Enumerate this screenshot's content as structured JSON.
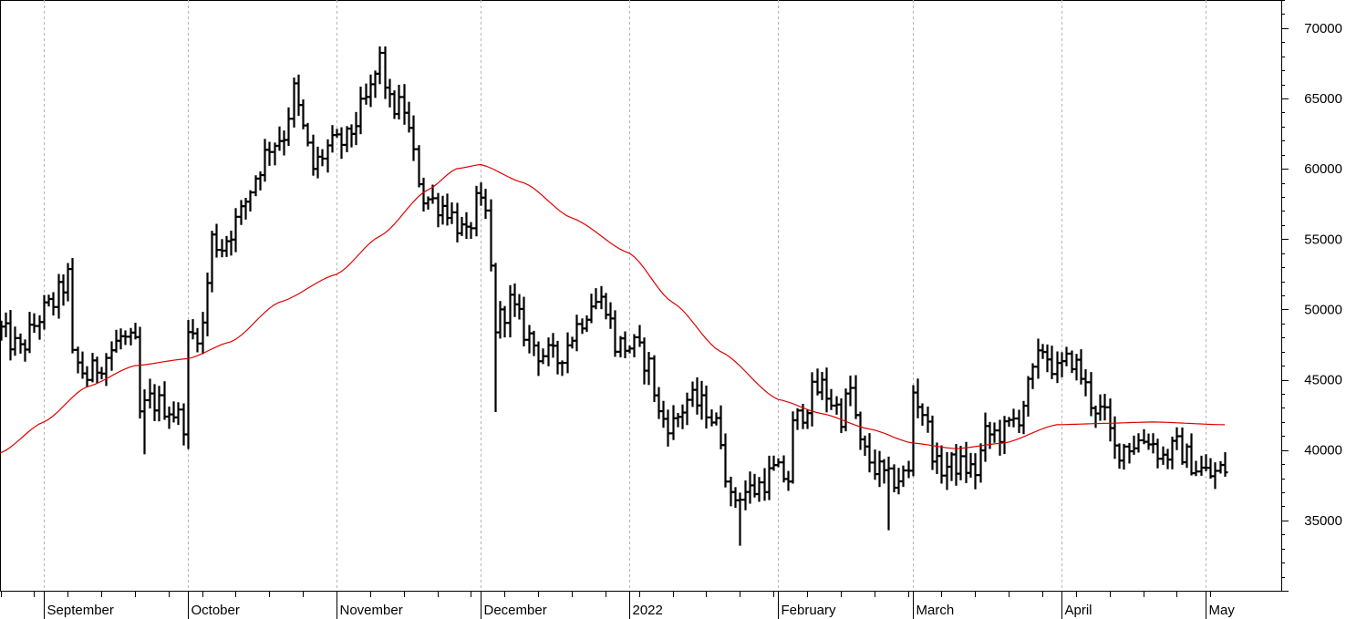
{
  "chart_data": {
    "type": "ohlc",
    "title": "",
    "xlabel": "",
    "ylabel": "",
    "ylim": [
      30000,
      72000
    ],
    "y_ticks": [
      35000,
      40000,
      45000,
      50000,
      55000,
      60000,
      65000,
      70000
    ],
    "y_axis_position": "right",
    "grid": "vertical dashed lines at month starts",
    "x_start": "2021-08-23",
    "x_end": "2022-05-05",
    "month_labels": [
      {
        "date": "2021-09-01",
        "label": "September"
      },
      {
        "date": "2021-10-01",
        "label": "October"
      },
      {
        "date": "2021-11-01",
        "label": "November"
      },
      {
        "date": "2021-12-01",
        "label": "December"
      },
      {
        "date": "2022-01-01",
        "label": "2022"
      },
      {
        "date": "2022-02-01",
        "label": "February"
      },
      {
        "date": "2022-03-01",
        "label": "March"
      },
      {
        "date": "2022-04-01",
        "label": "April"
      },
      {
        "date": "2022-05-01",
        "label": "May"
      }
    ],
    "price_anchors": [
      [
        "2021-08-23",
        48500
      ],
      [
        "2021-08-27",
        47000
      ],
      [
        "2021-08-31",
        49500
      ],
      [
        "2021-09-03",
        50500
      ],
      [
        "2021-09-06",
        52300
      ],
      [
        "2021-09-07",
        46500
      ],
      [
        "2021-09-10",
        45200
      ],
      [
        "2021-09-14",
        46700
      ],
      [
        "2021-09-17",
        48000
      ],
      [
        "2021-09-20",
        47300
      ],
      [
        "2021-09-21",
        42500
      ],
      [
        "2021-09-23",
        43500
      ],
      [
        "2021-09-27",
        43000
      ],
      [
        "2021-09-30",
        42000
      ],
      [
        "2021-10-01",
        47800
      ],
      [
        "2021-10-04",
        48800
      ],
      [
        "2021-10-06",
        55000
      ],
      [
        "2021-10-08",
        54500
      ],
      [
        "2021-10-12",
        56800
      ],
      [
        "2021-10-15",
        59500
      ],
      [
        "2021-10-18",
        61700
      ],
      [
        "2021-10-21",
        62500
      ],
      [
        "2021-10-23",
        65500
      ],
      [
        "2021-10-27",
        60000
      ],
      [
        "2021-10-30",
        61500
      ],
      [
        "2021-11-03",
        62000
      ],
      [
        "2021-11-08",
        65500
      ],
      [
        "2021-11-10",
        67800
      ],
      [
        "2021-11-12",
        64500
      ],
      [
        "2021-11-15",
        64300
      ],
      [
        "2021-11-17",
        60800
      ],
      [
        "2021-11-19",
        58000
      ],
      [
        "2021-11-24",
        57200
      ],
      [
        "2021-11-28",
        55000
      ],
      [
        "2021-11-30",
        57500
      ],
      [
        "2021-12-02",
        56700
      ],
      [
        "2021-12-04",
        48800
      ],
      [
        "2021-12-07",
        50500
      ],
      [
        "2021-12-10",
        48500
      ],
      [
        "2021-12-13",
        47000
      ],
      [
        "2021-12-17",
        46400
      ],
      [
        "2021-12-21",
        48800
      ],
      [
        "2021-12-24",
        50600
      ],
      [
        "2021-12-27",
        50500
      ],
      [
        "2021-12-29",
        47500
      ],
      [
        "2022-01-02",
        47300
      ],
      [
        "2022-01-05",
        46000
      ],
      [
        "2022-01-07",
        42500
      ],
      [
        "2022-01-10",
        41800
      ],
      [
        "2022-01-13",
        43600
      ],
      [
        "2022-01-17",
        43000
      ],
      [
        "2022-01-20",
        41000
      ],
      [
        "2022-01-22",
        36300
      ],
      [
        "2022-01-24",
        37000
      ],
      [
        "2022-01-27",
        37200
      ],
      [
        "2022-01-31",
        38500
      ],
      [
        "2022-02-03",
        38000
      ],
      [
        "2022-02-04",
        41600
      ],
      [
        "2022-02-08",
        44000
      ],
      [
        "2022-02-10",
        44500
      ],
      [
        "2022-02-14",
        42500
      ],
      [
        "2022-02-16",
        44300
      ],
      [
        "2022-02-18",
        40200
      ],
      [
        "2022-02-21",
        38800
      ],
      [
        "2022-02-24",
        37800
      ],
      [
        "2022-02-28",
        38300
      ],
      [
        "2022-03-01",
        44200
      ],
      [
        "2022-03-03",
        42800
      ],
      [
        "2022-03-06",
        38700
      ],
      [
        "2022-03-10",
        39000
      ],
      [
        "2022-03-14",
        38500
      ],
      [
        "2022-03-16",
        41000
      ],
      [
        "2022-03-20",
        41300
      ],
      [
        "2022-03-23",
        42500
      ],
      [
        "2022-03-25",
        44300
      ],
      [
        "2022-03-28",
        47300
      ],
      [
        "2022-03-31",
        45500
      ],
      [
        "2022-04-03",
        46500
      ],
      [
        "2022-04-05",
        45300
      ],
      [
        "2022-04-07",
        43500
      ],
      [
        "2022-04-10",
        42300
      ],
      [
        "2022-04-12",
        40000
      ],
      [
        "2022-04-15",
        40400
      ],
      [
        "2022-04-19",
        40900
      ],
      [
        "2022-04-22",
        39500
      ],
      [
        "2022-04-25",
        40200
      ],
      [
        "2022-04-29",
        38800
      ],
      [
        "2022-05-02",
        38200
      ],
      [
        "2022-05-05",
        38700
      ]
    ],
    "moving_average": {
      "color": "#e00000",
      "points": [
        [
          "2021-08-23",
          39800
        ],
        [
          "2021-09-01",
          42000
        ],
        [
          "2021-09-10",
          44500
        ],
        [
          "2021-09-20",
          46000
        ],
        [
          "2021-10-01",
          46500
        ],
        [
          "2021-10-10",
          47700
        ],
        [
          "2021-10-20",
          50500
        ],
        [
          "2021-11-01",
          52500
        ],
        [
          "2021-11-10",
          55200
        ],
        [
          "2021-11-20",
          58500
        ],
        [
          "2021-11-26",
          60000
        ],
        [
          "2021-12-01",
          60300
        ],
        [
          "2021-12-10",
          59000
        ],
        [
          "2021-12-20",
          56500
        ],
        [
          "2022-01-01",
          54000
        ],
        [
          "2022-01-10",
          50500
        ],
        [
          "2022-01-20",
          47000
        ],
        [
          "2022-02-01",
          43600
        ],
        [
          "2022-02-10",
          42600
        ],
        [
          "2022-02-20",
          41500
        ],
        [
          "2022-03-01",
          40500
        ],
        [
          "2022-03-10",
          40100
        ],
        [
          "2022-03-20",
          40500
        ],
        [
          "2022-03-31",
          41800
        ],
        [
          "2022-04-10",
          41900
        ],
        [
          "2022-04-20",
          42000
        ],
        [
          "2022-05-05",
          41800
        ]
      ]
    },
    "price_range": {
      "low": 33200,
      "high": 68700
    },
    "extremes": [
      [
        "2021-09-22",
        39700,
        "low"
      ],
      [
        "2021-11-10",
        68700,
        "high"
      ],
      [
        "2021-12-04",
        42700,
        "low"
      ],
      [
        "2022-01-24",
        33200,
        "low"
      ],
      [
        "2022-02-24",
        34300,
        "low"
      ]
    ]
  }
}
